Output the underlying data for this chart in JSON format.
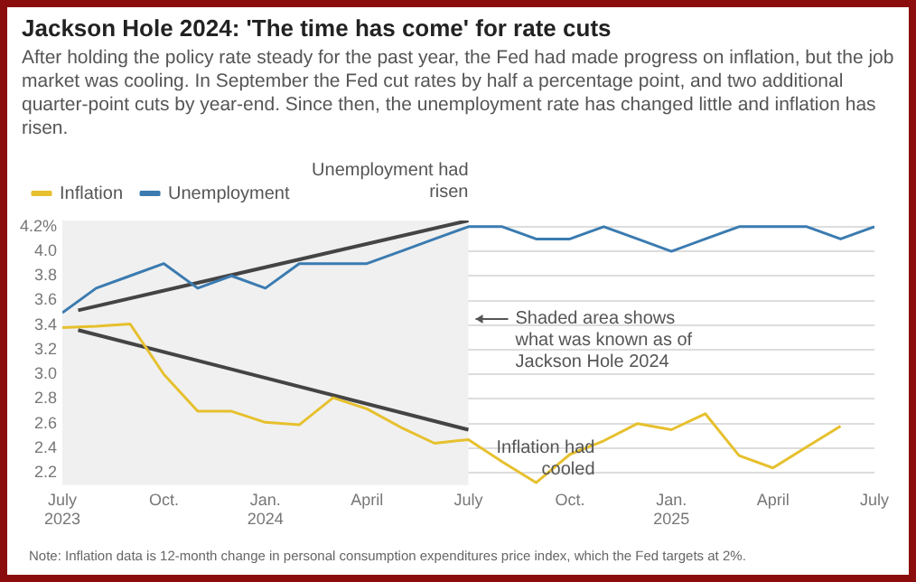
{
  "chart_data": {
    "type": "line",
    "title": "Jackson Hole 2024: 'The time has come' for rate cuts",
    "subtitle": "After holding the policy rate steady for the past year, the Fed had made progress on inflation, but the job market was cooling. In September the Fed cut rates by half a percentage point, and two additional quarter-point cuts by year-end. Since then, the unemployment rate has changed little and inflation has risen.",
    "x": [
      "2023-07",
      "2023-08",
      "2023-09",
      "2023-10",
      "2023-11",
      "2023-12",
      "2024-01",
      "2024-02",
      "2024-03",
      "2024-04",
      "2024-05",
      "2024-06",
      "2024-07",
      "2024-08",
      "2024-09",
      "2024-10",
      "2024-11",
      "2024-12",
      "2025-01",
      "2025-02",
      "2025-03",
      "2025-04",
      "2025-05",
      "2025-06",
      "2025-07"
    ],
    "series": [
      {
        "name": "Inflation",
        "color": "#e6c02e",
        "values": [
          3.38,
          3.39,
          3.41,
          3.0,
          2.7,
          2.7,
          2.61,
          2.59,
          2.81,
          2.72,
          2.57,
          2.44,
          2.47,
          2.29,
          2.12,
          2.35,
          2.46,
          2.6,
          2.55,
          2.68,
          2.34,
          2.24,
          2.41,
          2.58,
          null
        ]
      },
      {
        "name": "Unemployment",
        "color": "#3b7bb0",
        "values": [
          3.5,
          3.7,
          3.8,
          3.9,
          3.7,
          3.8,
          3.7,
          3.9,
          3.9,
          3.9,
          4.0,
          4.1,
          4.2,
          4.2,
          4.1,
          4.1,
          4.2,
          4.1,
          4.0,
          4.1,
          4.2,
          4.2,
          4.2,
          4.1,
          4.2
        ]
      },
      {
        "type": "line",
        "color": "#444444",
        "x": [
          "2023-07-15",
          "2024-07-01"
        ],
        "values": [
          3.52,
          4.25
        ]
      },
      {
        "type": "line",
        "color": "#444444",
        "x": [
          "2023-07-15",
          "2024-07-01"
        ],
        "values": [
          3.36,
          2.55
        ]
      }
    ],
    "xlim": [
      "2023-07",
      "2025-07"
    ],
    "xticks": [
      {
        "value": "2023-07",
        "label": "July\n2023"
      },
      {
        "value": "2023-10",
        "label": "Oct."
      },
      {
        "value": "2024-01",
        "label": "Jan.\n2024"
      },
      {
        "value": "2024-04",
        "label": "April"
      },
      {
        "value": "2024-07",
        "label": "July"
      },
      {
        "value": "2024-10",
        "label": "Oct."
      },
      {
        "value": "2025-01",
        "label": "Jan.\n2025"
      },
      {
        "value": "2025-04",
        "label": "April"
      },
      {
        "value": "2025-07",
        "label": "July"
      }
    ],
    "ylim": [
      2.1,
      4.25
    ],
    "yticks": [
      2.2,
      2.4,
      2.6,
      2.8,
      {
        "value": 3,
        "label": "3.0"
      },
      3.2,
      3.4,
      3.6,
      3.8,
      {
        "value": 4,
        "label": "4.0"
      },
      {
        "value": 4.2,
        "label": "4.2%"
      }
    ],
    "grid": "y",
    "legend": "top left",
    "bands": [
      {
        "axis": "x",
        "from": "2023-07",
        "to": "2024-07",
        "label": "Shaded area shows what was known as of Jackson Hole 2024",
        "color": "#f0f0f0"
      }
    ],
    "annotations": [
      {
        "text": "Unemployment had risen",
        "x": "2024-07",
        "y": 4.25
      },
      {
        "text": "Inflation had cooled",
        "x": "2024-07",
        "y": 2.55
      },
      "Note: Inflation data is 12-month change in personal consumption expenditures price index, which the Fed targets at 2%."
    ]
  }
}
